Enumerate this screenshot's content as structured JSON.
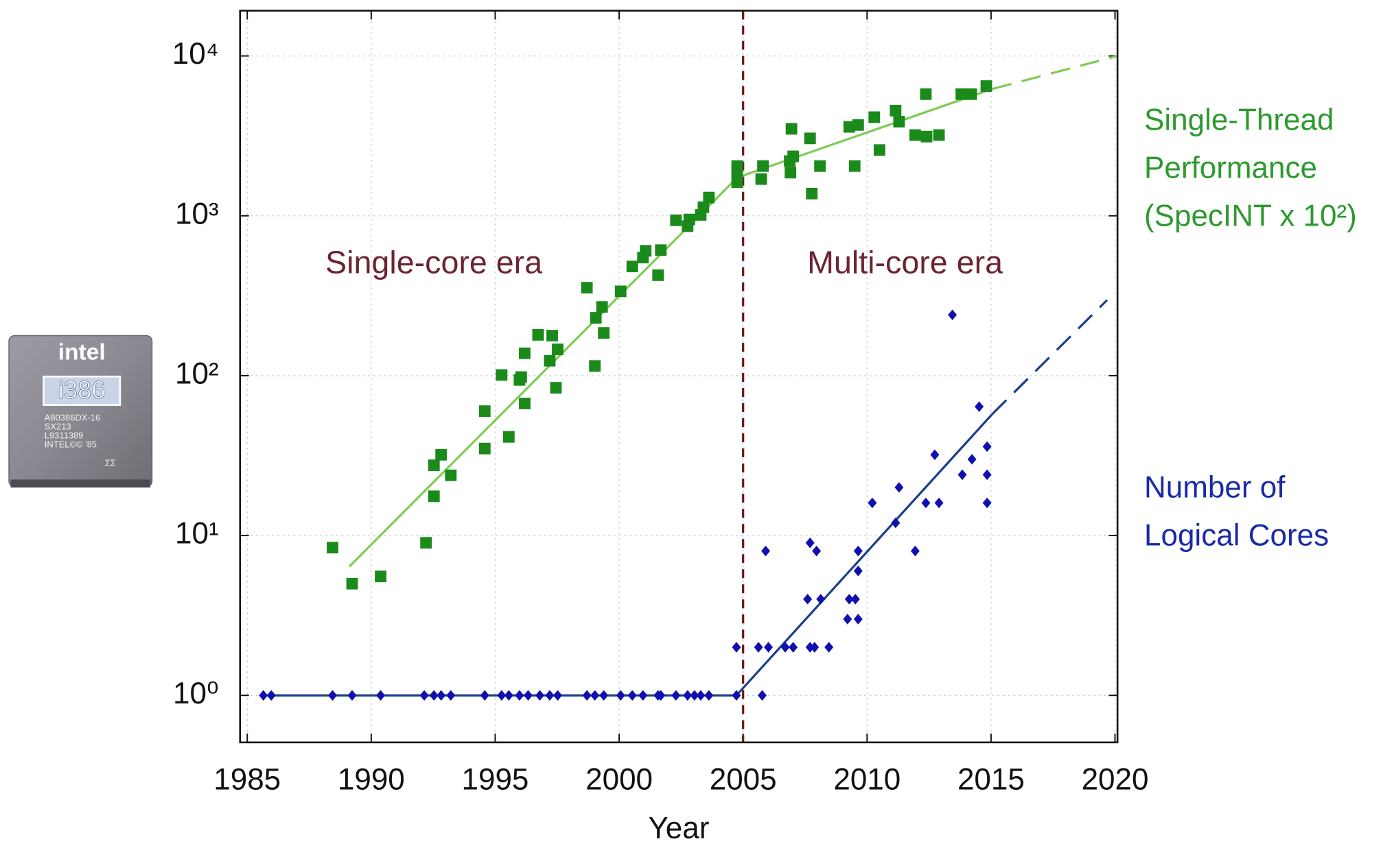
{
  "chart_data": {
    "type": "scatter",
    "x_label": "Year",
    "xlim": [
      1984.71,
      2020.1
    ],
    "xticks": [
      1985,
      1990,
      1995,
      2000,
      2005,
      2010,
      2015,
      2020
    ],
    "ylim": [
      0.508,
      19200
    ],
    "yticks": [
      {
        "value": 1,
        "label": "10⁰"
      },
      {
        "value": 10,
        "label": "10¹"
      },
      {
        "value": 100,
        "label": "10²"
      },
      {
        "value": 1000,
        "label": "10³"
      },
      {
        "value": 10000,
        "label": "10⁴"
      }
    ],
    "log_y": true,
    "grid": true,
    "divider_x": 2005,
    "divider_color": "#6b1a1a",
    "annotations": [
      "Single-core era",
      "Multi-core era"
    ],
    "annotation_color": "#6b2432",
    "series": [
      {
        "name": "Single-Thread Performance (SpecINT x 10²)",
        "color": "#1a8a1a",
        "label_color": "#2e9a2e",
        "marker": "square",
        "x": [
          1988.44,
          1989.23,
          1990.38,
          1992.21,
          1992.53,
          1992.53,
          1992.82,
          1993.21,
          1994.58,
          1994.58,
          1995.26,
          1995.55,
          1995.98,
          1996.05,
          1996.19,
          1996.19,
          1996.73,
          1997.2,
          1997.3,
          1997.45,
          1997.52,
          1998.7,
          1999.02,
          1999.06,
          1999.31,
          1999.38,
          2000.06,
          2000.53,
          2000.96,
          2001.07,
          2001.57,
          2001.68,
          2002.29,
          2002.76,
          2002.83,
          2003.29,
          2003.4,
          2003.62,
          2004.76,
          2004.76,
          2004.76,
          2005.73,
          2005.8,
          2006.91,
          2006.88,
          2007.02,
          2006.95,
          2007.7,
          2007.77,
          2008.1,
          2009.28,
          2009.5,
          2009.64,
          2010.29,
          2010.5,
          2011.15,
          2011.29,
          2011.94,
          2012.37,
          2012.4,
          2012.9,
          2013.8,
          2014.2,
          2014.81
        ],
        "values": [
          8.4,
          5.0,
          5.55,
          9.0,
          17.6,
          27.5,
          32,
          23.8,
          60,
          35,
          101,
          41.4,
          94,
          98,
          138,
          67,
          180,
          124,
          178,
          84,
          146,
          355,
          115,
          230,
          269,
          185,
          337,
          482,
          548,
          604,
          425,
          610,
          938,
          862,
          948,
          1013,
          1132,
          1301,
          2047,
          1625,
          1862,
          1698,
          2048,
          1862,
          2200,
          2355,
          3500,
          3050,
          1377,
          2047,
          3600,
          2047,
          3700,
          4140,
          2580,
          4550,
          3880,
          3200,
          5770,
          3130,
          3200,
          5770,
          5770,
          6480
        ],
        "trend": {
          "color": "#7fcc55",
          "x": [
            1989.12,
            2004.76,
            2015.06
          ],
          "values": [
            6.4,
            1734,
            6225
          ]
        },
        "projection": {
          "color": "#7fcc55",
          "x": [
            2015.06,
            2020.1
          ],
          "values": [
            6225,
            10000
          ]
        }
      },
      {
        "name": "Number of Logical Cores",
        "color": "#1010b0",
        "label_color": "#1a2aa8",
        "marker": "diamond",
        "x": [
          1985.65,
          1985.97,
          1988.44,
          1989.23,
          1990.38,
          1992.14,
          1992.53,
          1992.82,
          1993.21,
          1994.58,
          1995.26,
          1995.55,
          1995.98,
          1996.33,
          1996.8,
          1997.2,
          1997.52,
          1998.7,
          1999.02,
          1999.38,
          2000.06,
          2000.53,
          2000.96,
          2001.57,
          2001.68,
          2002.29,
          2002.76,
          2003.04,
          2003.29,
          2003.62,
          2004.73,
          2004.73,
          2005.77,
          2005.62,
          2006.02,
          2005.91,
          2006.7,
          2007.02,
          2007.6,
          2007.7,
          2007.88,
          2007.7,
          2007.96,
          2008.13,
          2008.46,
          2009.21,
          2009.28,
          2009.53,
          2009.64,
          2009.64,
          2009.64,
          2010.21,
          2011.15,
          2011.29,
          2011.94,
          2012.37,
          2012.73,
          2012.9,
          2013.44,
          2013.84,
          2014.23,
          2014.52,
          2014.84,
          2014.84,
          2014.84
        ],
        "values": [
          1,
          1,
          1,
          1,
          1,
          1,
          1,
          1,
          1,
          1,
          1,
          1,
          1,
          1,
          1,
          1,
          1,
          1,
          1,
          1,
          1,
          1,
          1,
          1,
          1,
          1,
          1,
          1,
          1,
          1,
          1,
          2,
          1,
          2,
          2,
          8,
          2,
          2,
          4,
          2,
          2,
          9,
          8,
          4,
          2,
          3,
          4,
          4,
          3,
          8,
          6,
          16,
          12,
          20,
          8,
          16,
          32,
          16,
          240,
          24,
          30,
          64,
          36,
          24,
          16
        ],
        "trend": {
          "color": "#1c3f8a",
          "x": [
            1985.65,
            2004.73,
            2015.06
          ],
          "values": [
            1,
            1,
            57.7
          ]
        },
        "projection": {
          "color": "#1c3f8a",
          "x": [
            2015.06,
            2019.68
          ],
          "values": [
            57.7,
            297
          ]
        }
      }
    ]
  },
  "chip_photo": {
    "brand": "intel",
    "model": "i386",
    "markings": [
      "A80386DX-16",
      "SX213",
      "L9311389",
      "INTEL©© '85",
      "ΣΣ"
    ]
  }
}
